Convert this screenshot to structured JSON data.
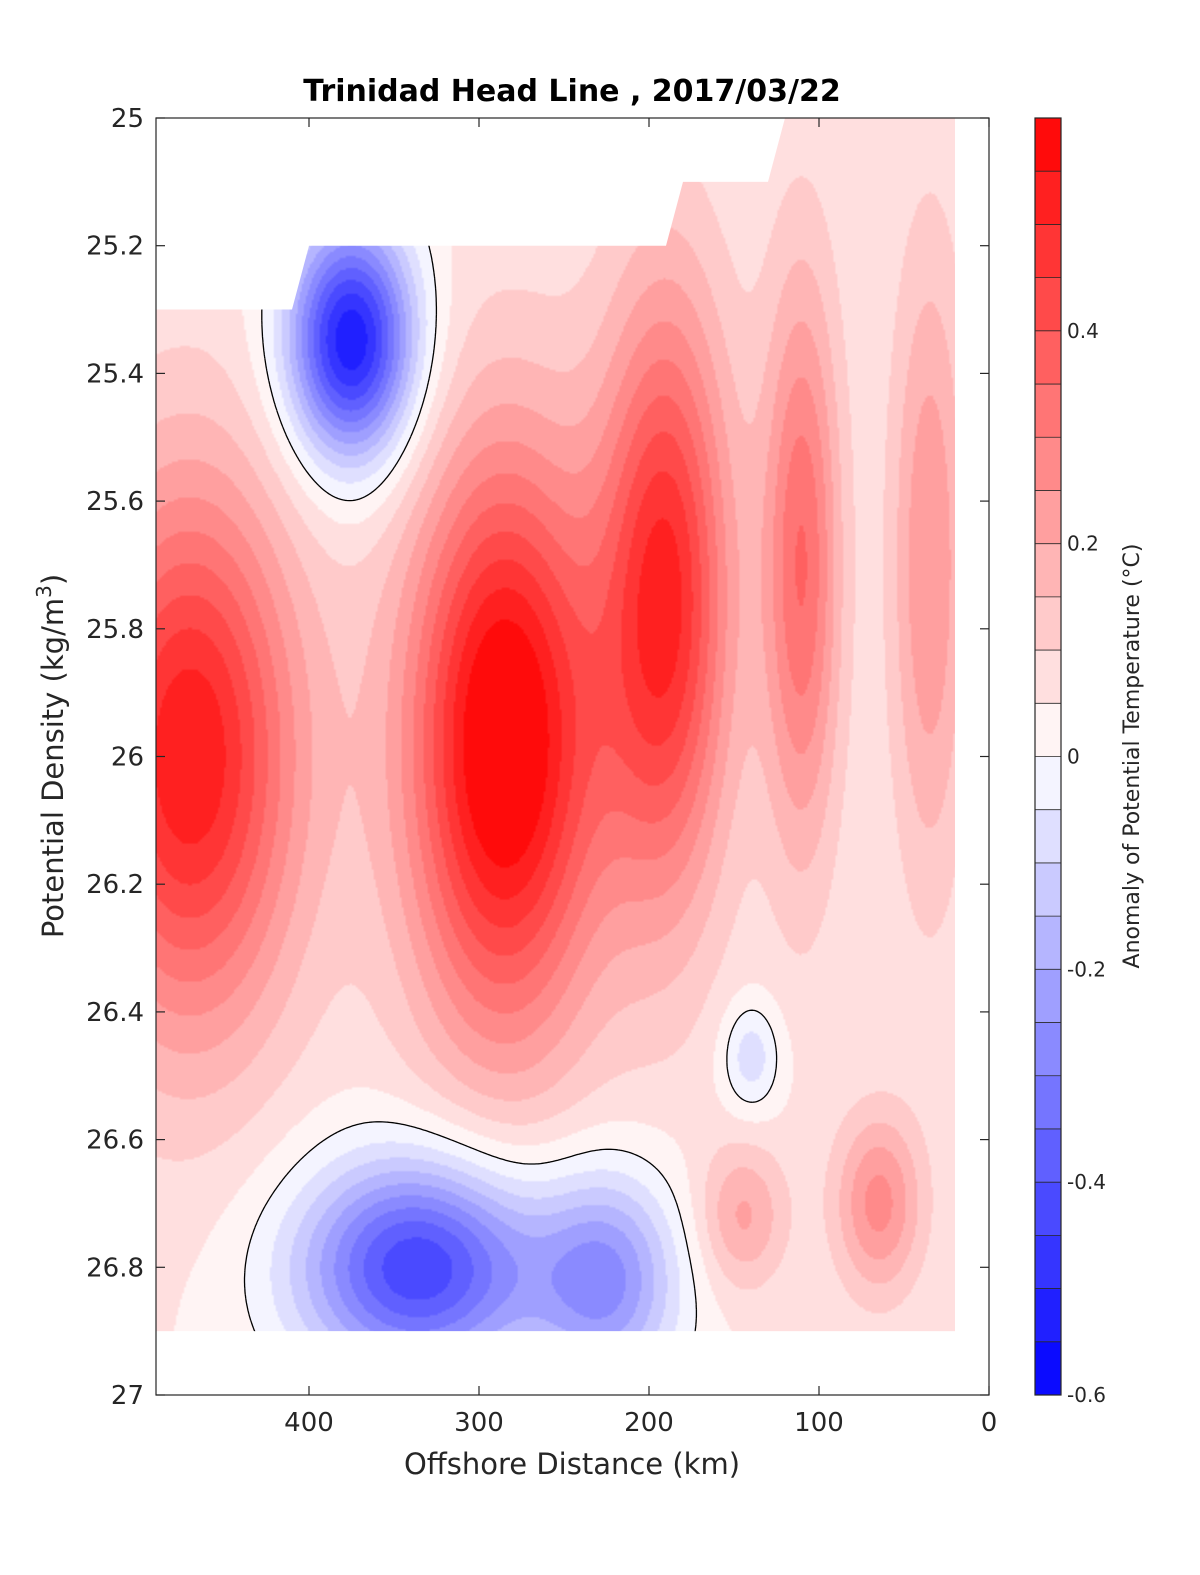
{
  "chart_data": {
    "type": "heatmap",
    "title": "Trinidad Head Line , 2017/03/22",
    "xlabel": "Offshore Distance (km)",
    "ylabel": "Potential Density (kg/m3)",
    "ylabel_base": "Potential Density (kg/m",
    "ylabel_sup": "3",
    "ylabel_close": ")",
    "xlim": [
      490,
      0
    ],
    "ylim": [
      25,
      27
    ],
    "x_reversed": true,
    "y_reversed": true,
    "x_ticks": [
      400,
      300,
      200,
      100,
      0
    ],
    "y_ticks": [
      25,
      25.2,
      25.4,
      25.6,
      25.8,
      26,
      26.2,
      26.4,
      26.6,
      26.8,
      27
    ],
    "x_tick_labels": [
      "400",
      "300",
      "200",
      "100",
      "0"
    ],
    "y_tick_labels": [
      "25",
      "25.2",
      "25.4",
      "25.6",
      "25.8",
      "26",
      "26.2",
      "26.4",
      "26.6",
      "26.8",
      "27"
    ],
    "colorbar": {
      "label": "Anomaly of Potential Temperature (°C)",
      "min": -0.6,
      "max": 0.6,
      "levels": 24,
      "ticks": [
        0.4,
        0.2,
        0,
        -0.2,
        -0.4,
        -0.6
      ],
      "tick_labels": [
        "0.4",
        "0.2",
        "0",
        "-0.2",
        "-0.4",
        "-0.6"
      ],
      "colormap": "blue-white-red",
      "low_color": "#0000ff",
      "mid_color": "#ffffff",
      "high_color": "#ff0000"
    },
    "data_coverage": {
      "x_range": [
        20,
        490
      ],
      "y_range": [
        25,
        26.9
      ],
      "top_boundary": [
        [
          490,
          25.3
        ],
        [
          410,
          25.3
        ],
        [
          400,
          25.2
        ],
        [
          190,
          25.2
        ],
        [
          180,
          25.1
        ],
        [
          130,
          25.1
        ],
        [
          120,
          25.0
        ],
        [
          20,
          25.0
        ]
      ]
    },
    "anomaly_features": [
      {
        "x": 470,
        "y": 26.0,
        "sigma_x": 45,
        "sigma_y": 0.3,
        "value": 0.5
      },
      {
        "x": 285,
        "y": 25.98,
        "sigma_x": 40,
        "sigma_y": 0.32,
        "value": 0.6
      },
      {
        "x": 190,
        "y": 25.75,
        "sigma_x": 27,
        "sigma_y": 0.33,
        "value": 0.46
      },
      {
        "x": 110,
        "y": 25.7,
        "sigma_x": 16,
        "sigma_y": 0.32,
        "value": 0.3
      },
      {
        "x": 35,
        "y": 25.7,
        "sigma_x": 16,
        "sigma_y": 0.35,
        "value": 0.2
      },
      {
        "x": 375,
        "y": 25.35,
        "sigma_x": 26,
        "sigma_y": 0.13,
        "value": -0.6
      },
      {
        "x": 335,
        "y": 26.8,
        "sigma_x": 50,
        "sigma_y": 0.12,
        "value": -0.5
      },
      {
        "x": 225,
        "y": 26.82,
        "sigma_x": 30,
        "sigma_y": 0.12,
        "value": -0.3
      },
      {
        "x": 140,
        "y": 26.47,
        "sigma_x": 12,
        "sigma_y": 0.06,
        "value": -0.14
      },
      {
        "x": 145,
        "y": 26.72,
        "sigma_x": 18,
        "sigma_y": 0.08,
        "value": 0.16
      },
      {
        "x": 65,
        "y": 26.7,
        "sigma_x": 18,
        "sigma_y": 0.1,
        "value": 0.22
      }
    ],
    "background_anomaly": 0.05,
    "zero_contour": "black line"
  }
}
